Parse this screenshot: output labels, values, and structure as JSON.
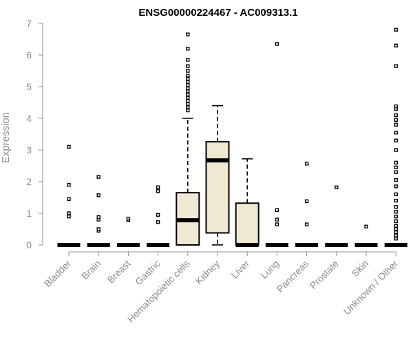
{
  "chart_data": {
    "type": "box",
    "title": "ENSG00000224467 - AC009313.1",
    "ylabel": "Expression",
    "xlabel": "",
    "ylim": [
      0,
      7
    ],
    "yticks": [
      0,
      1,
      2,
      3,
      4,
      5,
      6,
      7
    ],
    "colors": {
      "box_fill": "#efe8d2",
      "axis": "#8c8c8c",
      "stroke": "#000000"
    },
    "categories": [
      "Bladder",
      "Brain",
      "Breast",
      "Gastric",
      "Hematopoietic cells",
      "Kidney",
      "Liver",
      "Lung",
      "Pancreas",
      "Prostate",
      "Skin",
      "Unknown / Other"
    ],
    "boxes": [
      {
        "category": "Bladder",
        "q1": 0,
        "median": 0,
        "q3": 0,
        "whisker_low": 0,
        "whisker_high": 0,
        "outliers": [
          0.9,
          1.0,
          1.45,
          1.9,
          3.1
        ]
      },
      {
        "category": "Brain",
        "q1": 0,
        "median": 0,
        "q3": 0,
        "whisker_low": 0,
        "whisker_high": 0,
        "outliers": [
          0.45,
          0.5,
          0.8,
          0.88,
          1.57,
          2.15
        ]
      },
      {
        "category": "Breast",
        "q1": 0,
        "median": 0,
        "q3": 0,
        "whisker_low": 0,
        "whisker_high": 0,
        "outliers": [
          0.78,
          0.83
        ]
      },
      {
        "category": "Gastric",
        "q1": 0,
        "median": 0,
        "q3": 0,
        "whisker_low": 0,
        "whisker_high": 0,
        "outliers": [
          0.72,
          0.95,
          1.7,
          1.82
        ]
      },
      {
        "category": "Hematopoietic cells",
        "q1": 0,
        "median": 0.78,
        "q3": 1.65,
        "whisker_low": 0,
        "whisker_high": 4.0,
        "outliers": [
          4.25,
          4.35,
          4.45,
          4.55,
          4.65,
          4.75,
          4.85,
          4.95,
          5.05,
          5.15,
          5.25,
          5.35,
          5.5,
          5.65,
          5.85,
          6.2,
          6.65
        ]
      },
      {
        "category": "Kidney",
        "q1": 0.38,
        "median": 2.67,
        "q3": 3.26,
        "whisker_low": 0,
        "whisker_high": 4.4,
        "outliers": []
      },
      {
        "category": "Liver",
        "q1": 0,
        "median": 0,
        "q3": 1.32,
        "whisker_low": 0,
        "whisker_high": 2.72,
        "outliers": []
      },
      {
        "category": "Lung",
        "q1": 0,
        "median": 0,
        "q3": 0,
        "whisker_low": 0,
        "whisker_high": 0,
        "outliers": [
          0.65,
          0.8,
          1.1,
          6.35
        ]
      },
      {
        "category": "Pancreas",
        "q1": 0,
        "median": 0,
        "q3": 0,
        "whisker_low": 0,
        "whisker_high": 0,
        "outliers": [
          0.65,
          1.38,
          2.57
        ]
      },
      {
        "category": "Prostate",
        "q1": 0,
        "median": 0,
        "q3": 0,
        "whisker_low": 0,
        "whisker_high": 0,
        "outliers": [
          1.82
        ]
      },
      {
        "category": "Skin",
        "q1": 0,
        "median": 0,
        "q3": 0,
        "whisker_low": 0,
        "whisker_high": 0,
        "outliers": [
          0.58
        ]
      },
      {
        "category": "Unknown / Other",
        "q1": 0,
        "median": 0,
        "q3": 0,
        "whisker_low": 0,
        "whisker_high": 0,
        "outliers": [
          0.2,
          0.3,
          0.4,
          0.5,
          0.6,
          0.75,
          0.9,
          1.05,
          1.2,
          1.4,
          1.6,
          1.85,
          2.05,
          2.3,
          2.45,
          2.6,
          3.0,
          3.3,
          3.55,
          3.8,
          3.95,
          4.1,
          4.3,
          4.38,
          5.65,
          6.3,
          6.8
        ]
      }
    ]
  }
}
